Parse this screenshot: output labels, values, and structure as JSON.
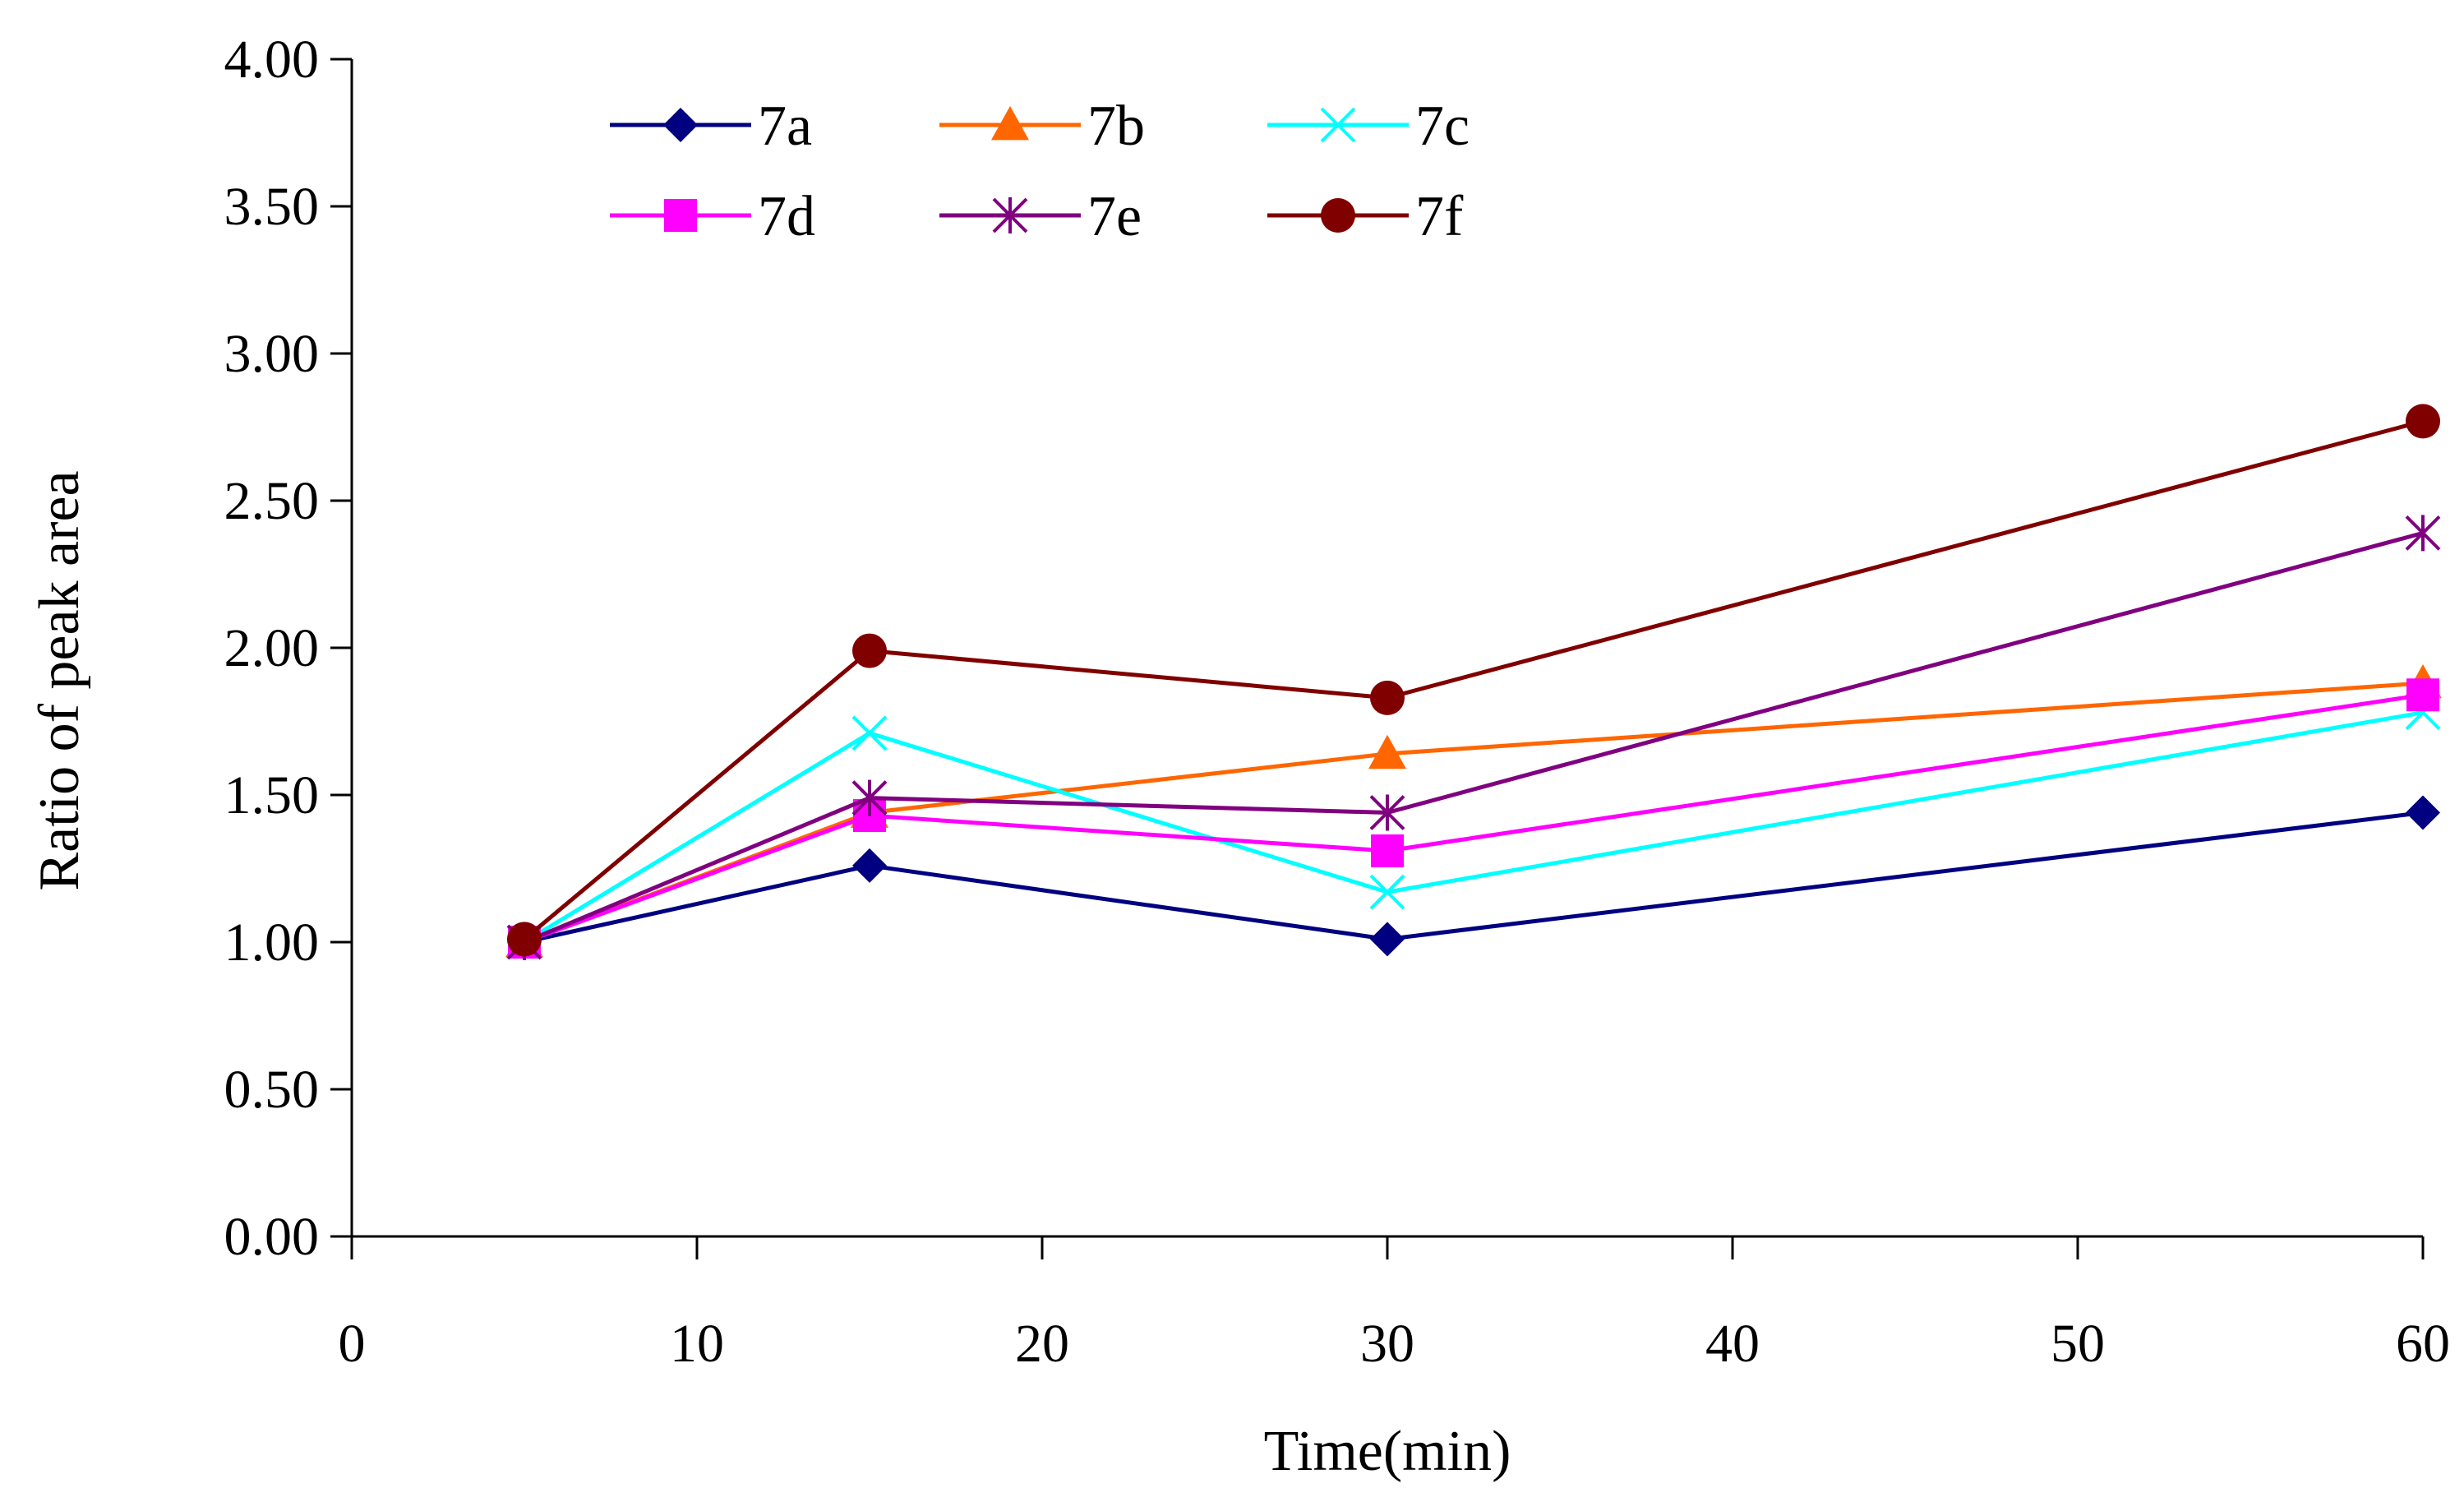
{
  "chart_data": {
    "type": "line",
    "title": "",
    "xlabel": "Time(min)",
    "ylabel": "Ratio of peak area",
    "xlim": [
      0,
      60
    ],
    "ylim": [
      0,
      4
    ],
    "x_ticks": [
      0,
      10,
      20,
      30,
      40,
      50,
      60
    ],
    "y_ticks": [
      0,
      0.5,
      1,
      1.5,
      2,
      2.5,
      3,
      3.5,
      4
    ],
    "x_tick_labels": [
      "0",
      "10",
      "20",
      "30",
      "40",
      "50",
      "60"
    ],
    "y_tick_labels": [
      "0.00",
      "0.50",
      "1.00",
      "1.50",
      "2.00",
      "2.50",
      "3.00",
      "3.50",
      "4.00"
    ],
    "grid": false,
    "legend_position": "top-left",
    "x": [
      5,
      15,
      30,
      60
    ],
    "series": [
      {
        "name": "7a",
        "values": [
          1.0,
          1.26,
          1.01,
          1.44
        ],
        "color": "#000080",
        "marker": "diamond"
      },
      {
        "name": "7b",
        "values": [
          1.0,
          1.44,
          1.64,
          1.88
        ],
        "color": "#ff6600",
        "marker": "triangle"
      },
      {
        "name": "7c",
        "values": [
          1.0,
          1.71,
          1.17,
          1.78
        ],
        "color": "#00ffff",
        "marker": "x"
      },
      {
        "name": "7d",
        "values": [
          1.0,
          1.43,
          1.31,
          1.84
        ],
        "color": "#ff00ff",
        "marker": "square"
      },
      {
        "name": "7e",
        "values": [
          1.0,
          1.49,
          1.44,
          2.39
        ],
        "color": "#800080",
        "marker": "star"
      },
      {
        "name": "7f",
        "values": [
          1.01,
          1.99,
          1.83,
          2.77
        ],
        "color": "#800000",
        "marker": "circle"
      }
    ]
  }
}
